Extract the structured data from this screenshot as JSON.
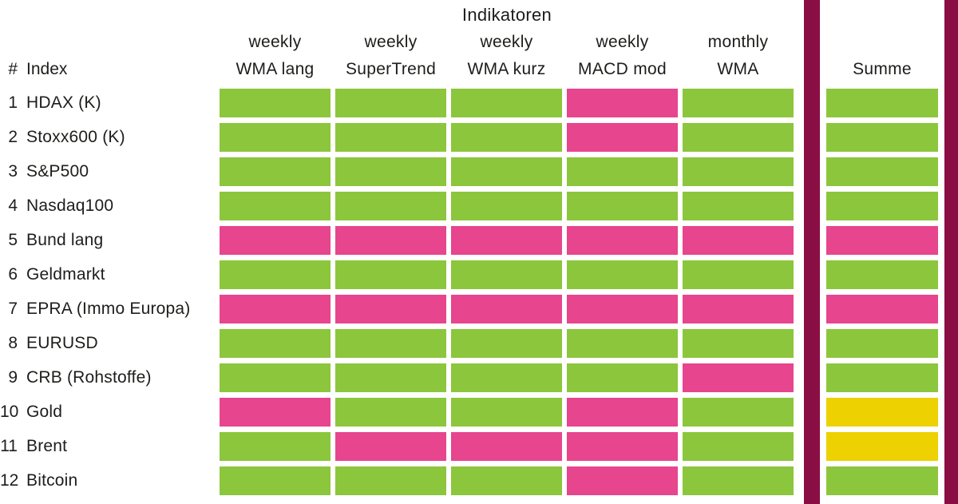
{
  "title": "Indikatoren",
  "header": {
    "number_col": "#",
    "index_col": "Index",
    "columns": [
      {
        "period": "weekly",
        "name": "WMA lang"
      },
      {
        "period": "weekly",
        "name": "SuperTrend"
      },
      {
        "period": "weekly",
        "name": "WMA kurz"
      },
      {
        "period": "weekly",
        "name": "MACD mod"
      },
      {
        "period": "monthly",
        "name": "WMA"
      }
    ],
    "summe": "Summe"
  },
  "rows": [
    {
      "num": "1",
      "label": "HDAX (K)",
      "cells": [
        "green",
        "green",
        "green",
        "pink",
        "green"
      ],
      "summe": "green"
    },
    {
      "num": "2",
      "label": "Stoxx600 (K)",
      "cells": [
        "green",
        "green",
        "green",
        "pink",
        "green"
      ],
      "summe": "green"
    },
    {
      "num": "3",
      "label": "S&P500",
      "cells": [
        "green",
        "green",
        "green",
        "green",
        "green"
      ],
      "summe": "green"
    },
    {
      "num": "4",
      "label": "Nasdaq100",
      "cells": [
        "green",
        "green",
        "green",
        "green",
        "green"
      ],
      "summe": "green"
    },
    {
      "num": "5",
      "label": "Bund lang",
      "cells": [
        "pink",
        "pink",
        "pink",
        "pink",
        "pink"
      ],
      "summe": "pink"
    },
    {
      "num": "6",
      "label": "Geldmarkt",
      "cells": [
        "green",
        "green",
        "green",
        "green",
        "green"
      ],
      "summe": "green"
    },
    {
      "num": "7",
      "label": "EPRA (Immo Europa)",
      "cells": [
        "pink",
        "pink",
        "pink",
        "pink",
        "pink"
      ],
      "summe": "pink"
    },
    {
      "num": "8",
      "label": "EURUSD",
      "cells": [
        "green",
        "green",
        "green",
        "green",
        "green"
      ],
      "summe": "green"
    },
    {
      "num": "9",
      "label": "CRB (Rohstoffe)",
      "cells": [
        "green",
        "green",
        "green",
        "green",
        "pink"
      ],
      "summe": "green"
    },
    {
      "num": "10",
      "label": "Gold",
      "cells": [
        "pink",
        "green",
        "green",
        "pink",
        "green"
      ],
      "summe": "yellow"
    },
    {
      "num": "11",
      "label": "Brent",
      "cells": [
        "green",
        "pink",
        "pink",
        "pink",
        "green"
      ],
      "summe": "yellow"
    },
    {
      "num": "12",
      "label": "Bitcoin",
      "cells": [
        "green",
        "green",
        "green",
        "pink",
        "green"
      ],
      "summe": "green"
    }
  ],
  "colors": {
    "green": "#8CC63C",
    "pink": "#E7458E",
    "yellow": "#EDD100",
    "maroon": "#8A0E44",
    "text": "#1D1D1B"
  },
  "chart_data": {
    "type": "heatmap",
    "title": "Indikatoren",
    "columns": [
      "weekly WMA lang",
      "weekly SuperTrend",
      "weekly WMA kurz",
      "weekly MACD mod",
      "monthly WMA",
      "Summe"
    ],
    "rows": [
      "HDAX (K)",
      "Stoxx600 (K)",
      "S&P500",
      "Nasdaq100",
      "Bund lang",
      "Geldmarkt",
      "EPRA (Immo Europa)",
      "EURUSD",
      "CRB (Rohstoffe)",
      "Gold",
      "Brent",
      "Bitcoin"
    ],
    "cell_colors": [
      [
        "green",
        "green",
        "green",
        "pink",
        "green",
        "green"
      ],
      [
        "green",
        "green",
        "green",
        "pink",
        "green",
        "green"
      ],
      [
        "green",
        "green",
        "green",
        "green",
        "green",
        "green"
      ],
      [
        "green",
        "green",
        "green",
        "green",
        "green",
        "green"
      ],
      [
        "pink",
        "pink",
        "pink",
        "pink",
        "pink",
        "pink"
      ],
      [
        "green",
        "green",
        "green",
        "green",
        "green",
        "green"
      ],
      [
        "pink",
        "pink",
        "pink",
        "pink",
        "pink",
        "pink"
      ],
      [
        "green",
        "green",
        "green",
        "green",
        "green",
        "green"
      ],
      [
        "green",
        "green",
        "green",
        "green",
        "pink",
        "green"
      ],
      [
        "pink",
        "green",
        "green",
        "pink",
        "green",
        "yellow"
      ],
      [
        "green",
        "pink",
        "pink",
        "pink",
        "green",
        "yellow"
      ],
      [
        "green",
        "green",
        "green",
        "pink",
        "green",
        "green"
      ]
    ],
    "legend_position": "none",
    "grid": false
  }
}
